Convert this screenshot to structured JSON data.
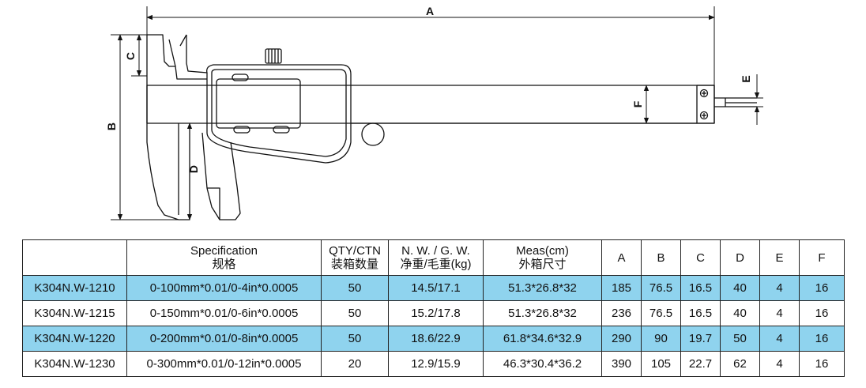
{
  "diagram": {
    "labels": {
      "A": "A",
      "B": "B",
      "C": "C",
      "D": "D",
      "E": "E",
      "F": "F"
    }
  },
  "table": {
    "headers": {
      "model": "",
      "spec_en": "Specification",
      "spec_cn": "规格",
      "qty_en": "QTY/CTN",
      "qty_cn": "装箱数量",
      "weight_en": "N. W. / G. W.",
      "weight_cn": "净重/毛重(kg)",
      "meas_en": "Meas(cm)",
      "meas_cn": "外箱尺寸",
      "a": "A",
      "b": "B",
      "c": "C",
      "d": "D",
      "e": "E",
      "f": "F"
    },
    "rows": [
      {
        "model": "K304N.W-1210",
        "spec": "0-100mm*0.01/0-4in*0.0005",
        "qty": "50",
        "weight": "14.5/17.1",
        "meas": "51.3*26.8*32",
        "a": "185",
        "b": "76.5",
        "c": "16.5",
        "d": "40",
        "e": "4",
        "f": "16"
      },
      {
        "model": "K304N.W-1215",
        "spec": "0-150mm*0.01/0-6in*0.0005",
        "qty": "50",
        "weight": "15.2/17.8",
        "meas": "51.3*26.8*32",
        "a": "236",
        "b": "76.5",
        "c": "16.5",
        "d": "40",
        "e": "4",
        "f": "16"
      },
      {
        "model": "K304N.W-1220",
        "spec": "0-200mm*0.01/0-8in*0.0005",
        "qty": "50",
        "weight": "18.6/22.9",
        "meas": "61.8*34.6*32.9",
        "a": "290",
        "b": "90",
        "c": "19.7",
        "d": "50",
        "e": "4",
        "f": "16"
      },
      {
        "model": "K304N.W-1230",
        "spec": "0-300mm*0.01/0-12in*0.0005",
        "qty": "20",
        "weight": "12.9/15.9",
        "meas": "46.3*30.4*36.2",
        "a": "390",
        "b": "105",
        "c": "22.7",
        "d": "62",
        "e": "4",
        "f": "16"
      }
    ],
    "highlight_color": "#8fd3ee"
  }
}
